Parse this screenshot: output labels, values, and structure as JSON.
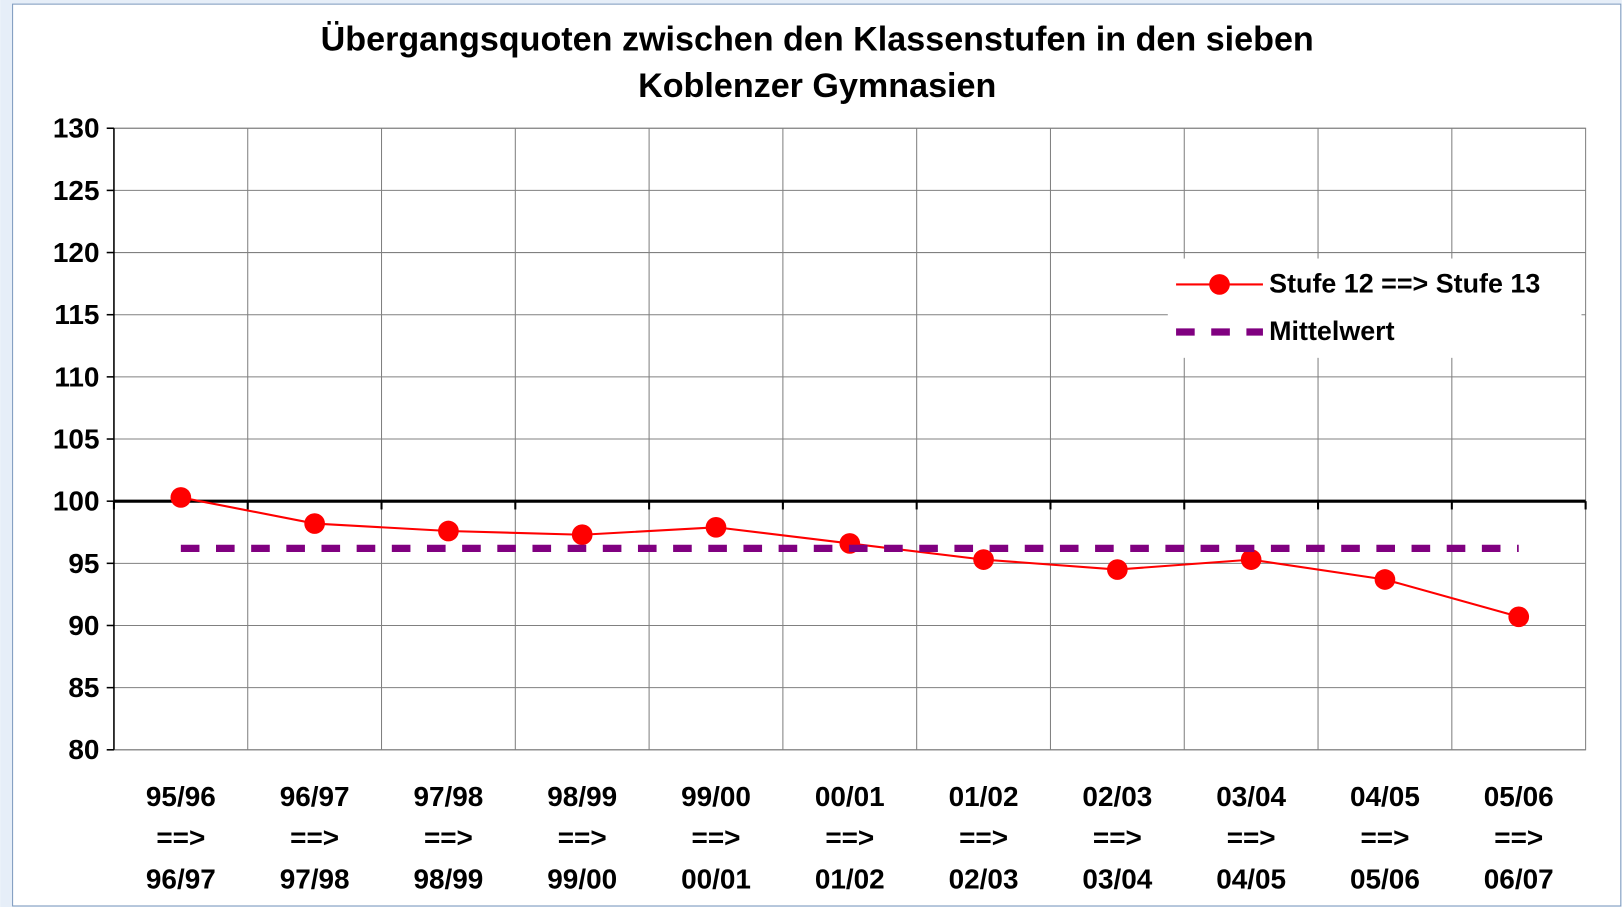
{
  "chart_data": {
    "type": "line",
    "title": [
      "Übergangsquoten zwischen den Klassenstufen in den sieben",
      "Koblenzer Gymnasien"
    ],
    "categories": [
      [
        "95/96",
        "==>",
        "96/97"
      ],
      [
        "96/97",
        "==>",
        "97/98"
      ],
      [
        "97/98",
        "==>",
        "98/99"
      ],
      [
        "98/99",
        "==>",
        "99/00"
      ],
      [
        "99/00",
        "==>",
        "00/01"
      ],
      [
        "00/01",
        "==>",
        "01/02"
      ],
      [
        "01/02",
        "==>",
        "02/03"
      ],
      [
        "02/03",
        "==>",
        "03/04"
      ],
      [
        "03/04",
        "==>",
        "04/05"
      ],
      [
        "04/05",
        "==>",
        "05/06"
      ],
      [
        "05/06",
        "==>",
        "06/07"
      ]
    ],
    "series": [
      {
        "name": "Stufe 12 ==> Stufe 13",
        "color": "#ff0000",
        "marker": "circle",
        "dash": false,
        "values": [
          100.3,
          98.2,
          97.6,
          97.3,
          97.9,
          96.6,
          95.3,
          94.5,
          95.3,
          93.7,
          90.7
        ]
      },
      {
        "name": "Mittelwert",
        "color": "#800080",
        "marker": "none",
        "dash": true,
        "values": [
          96.2,
          96.2,
          96.2,
          96.2,
          96.2,
          96.2,
          96.2,
          96.2,
          96.2,
          96.2,
          96.2
        ]
      }
    ],
    "ylim": [
      80,
      130
    ],
    "yticks": [
      80,
      85,
      90,
      95,
      100,
      105,
      110,
      115,
      120,
      125,
      130
    ],
    "x_axis_crosses": 100,
    "grid": true,
    "legend": "upper right"
  }
}
